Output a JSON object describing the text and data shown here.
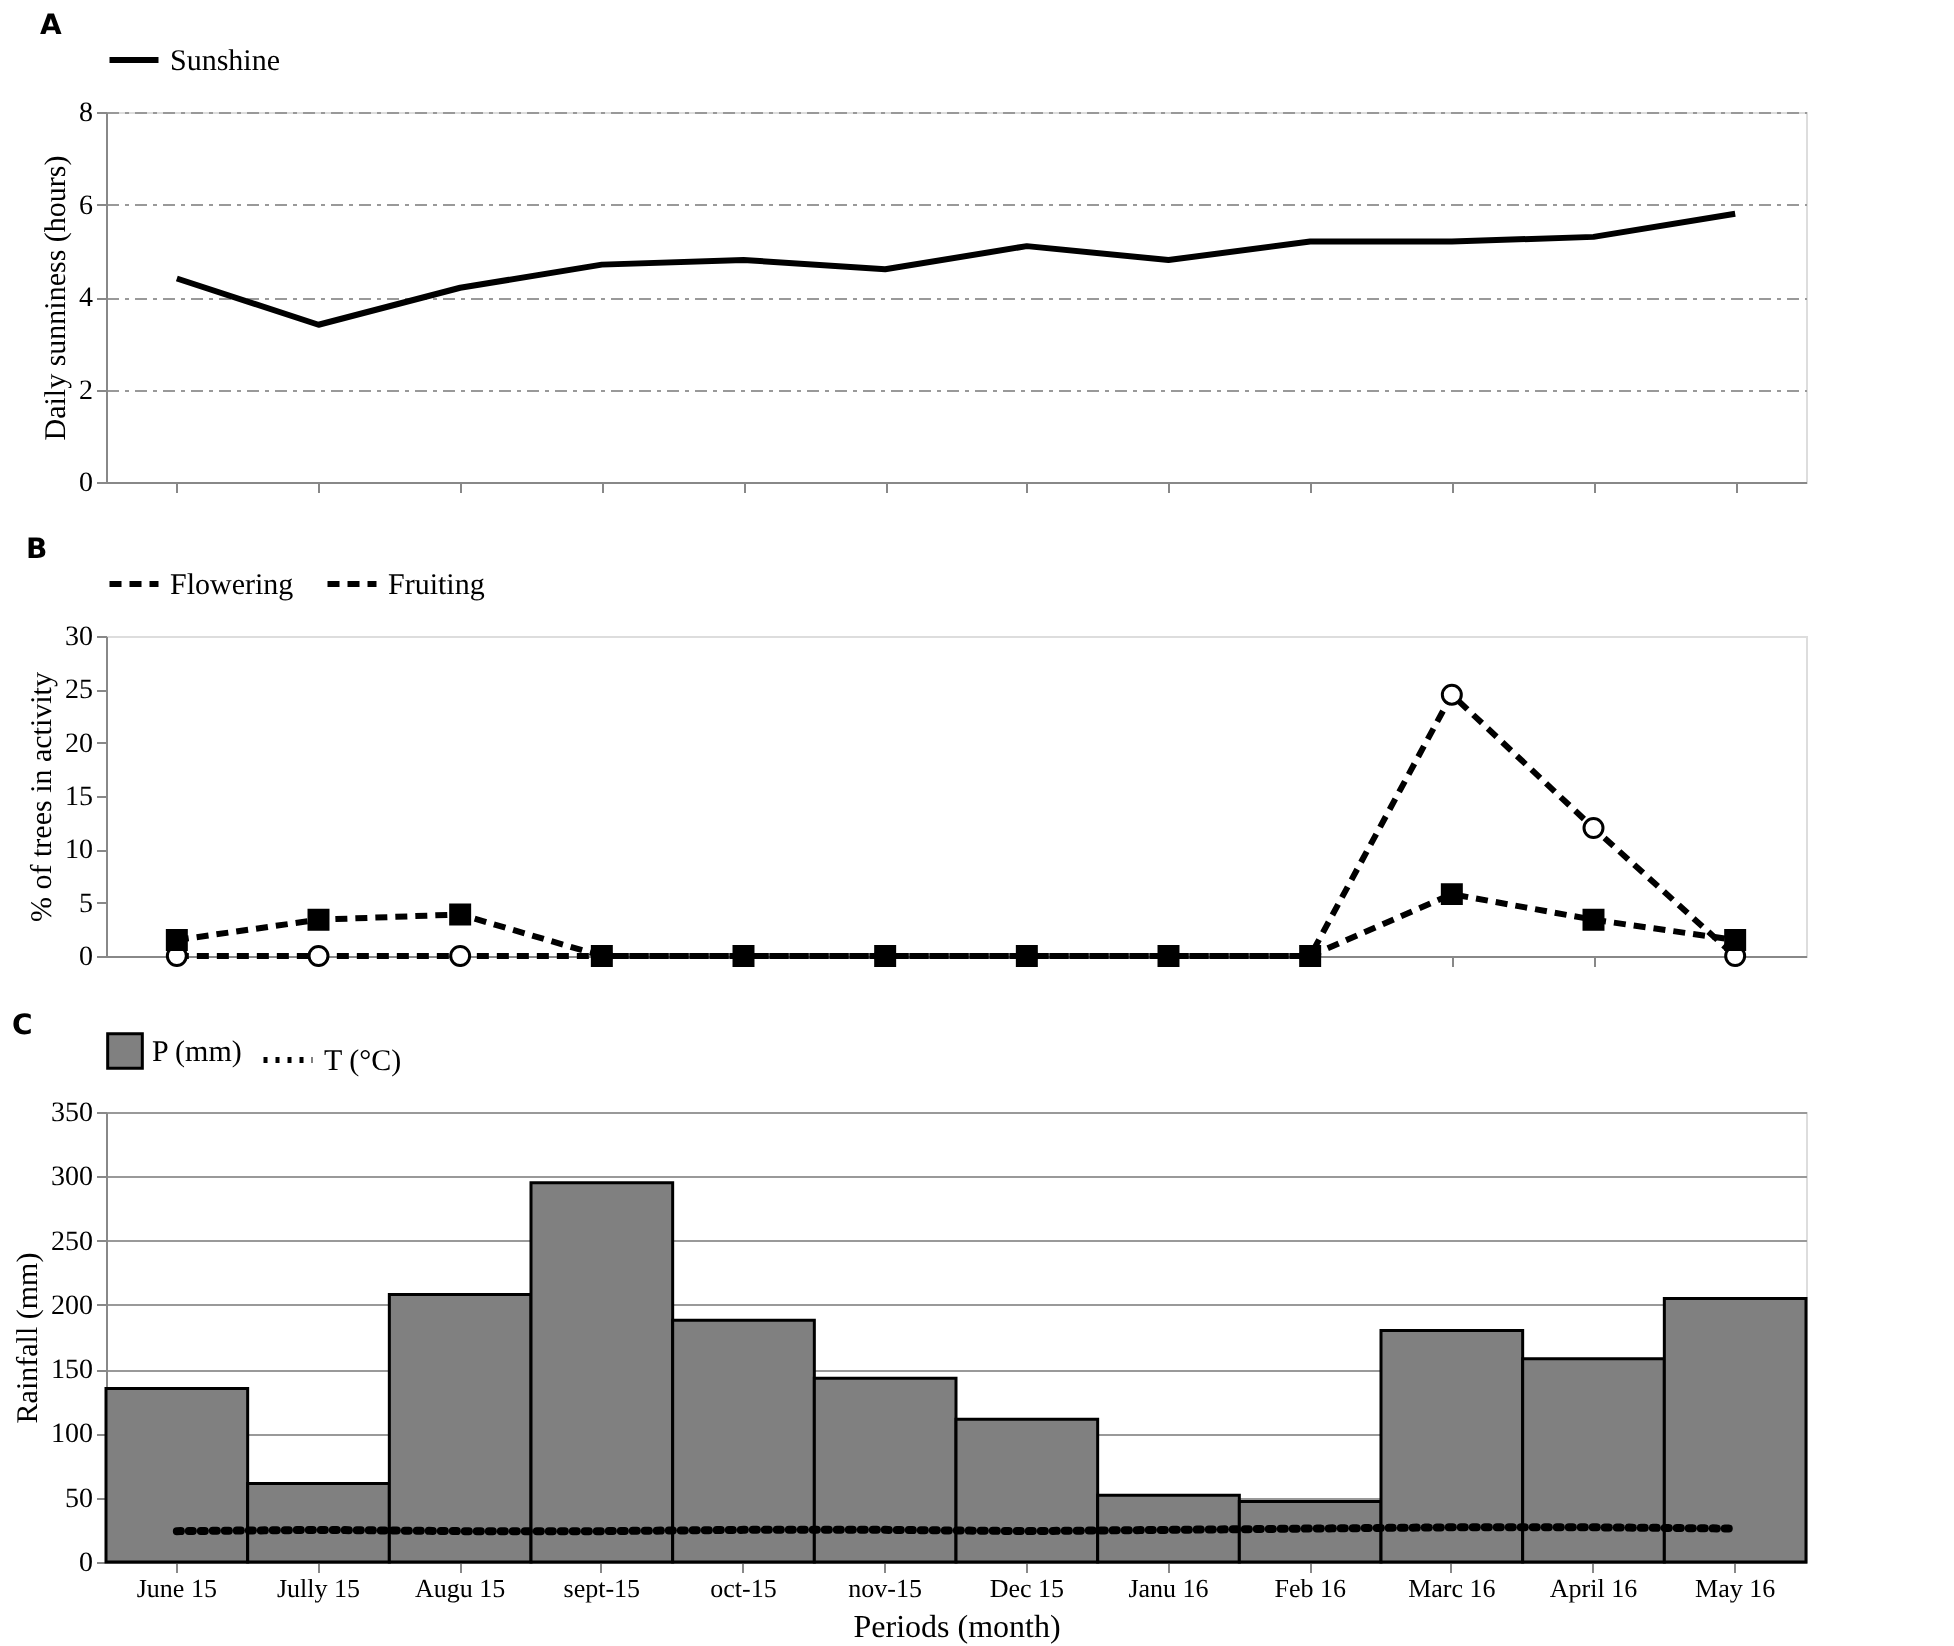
{
  "chart_data": [
    {
      "type": "line",
      "title": "A",
      "ylabel": "Daily sunniness (hours)",
      "categories": [
        null,
        null,
        null,
        null,
        null,
        null,
        null,
        null,
        null,
        null,
        null,
        null
      ],
      "tick_labels": "y",
      "ylim": [
        0,
        8
      ],
      "yticks": [
        0,
        2,
        4,
        6,
        8
      ],
      "grid": "y",
      "legend": "top",
      "line_style": "solid",
      "marker": "none",
      "series": [
        {
          "name": "Sunshine",
          "color": "#000000",
          "values": [
            4.4,
            3.4,
            4.2,
            4.7,
            4.8,
            4.6,
            5.1,
            4.8,
            5.2,
            5.2,
            5.3,
            5.8
          ]
        }
      ]
    },
    {
      "type": "line",
      "title": "B",
      "ylabel": "% of trees in activity",
      "categories": [
        null,
        null,
        null,
        null,
        null,
        null,
        null,
        null,
        null,
        null,
        null,
        null
      ],
      "tick_labels": "y",
      "ylim": [
        0,
        30
      ],
      "yticks": [
        0,
        5,
        10,
        15,
        20,
        25,
        30
      ],
      "legend": "top",
      "line_style": "dashed",
      "series": [
        {
          "name": "Flowering",
          "color": "#000000",
          "marker": "circle",
          "values": [
            0,
            0,
            0,
            0,
            0,
            0,
            0,
            0,
            0,
            24.5,
            12,
            0
          ]
        },
        {
          "name": "Fruiting",
          "color": "#000000",
          "marker": "square",
          "values": [
            1.5,
            3.4,
            3.9,
            0,
            0,
            0,
            0,
            0,
            0,
            5.8,
            3.4,
            1.5
          ]
        }
      ]
    },
    {
      "type": "bar",
      "title": "C",
      "xlabel": "Periods (month)",
      "ylabel": "Rainfall (mm)",
      "categories": [
        "June 15",
        "Jully 15",
        "Augu 15",
        "sept-15",
        "oct-15",
        "nov-15",
        "Dec 15",
        "Janu 16",
        "Feb 16",
        "Marc 16",
        "April 16",
        "May 16"
      ],
      "ylim": [
        0,
        350
      ],
      "yticks": [
        0,
        50,
        100,
        150,
        200,
        250,
        300,
        350
      ],
      "grid": "y",
      "legend": "top",
      "series": [
        {
          "name": "P (mm)",
          "color": "#808080",
          "values": [
            135,
            61,
            208,
            295,
            188,
            143,
            111,
            52,
            47,
            180,
            158,
            205
          ]
        },
        {
          "name": "T (°C)",
          "type": "line",
          "line_style": "dotted",
          "color": "#000000",
          "values": [
            24,
            25,
            24,
            24,
            25,
            25,
            24,
            25,
            26,
            27,
            27,
            26
          ]
        }
      ]
    }
  ]
}
